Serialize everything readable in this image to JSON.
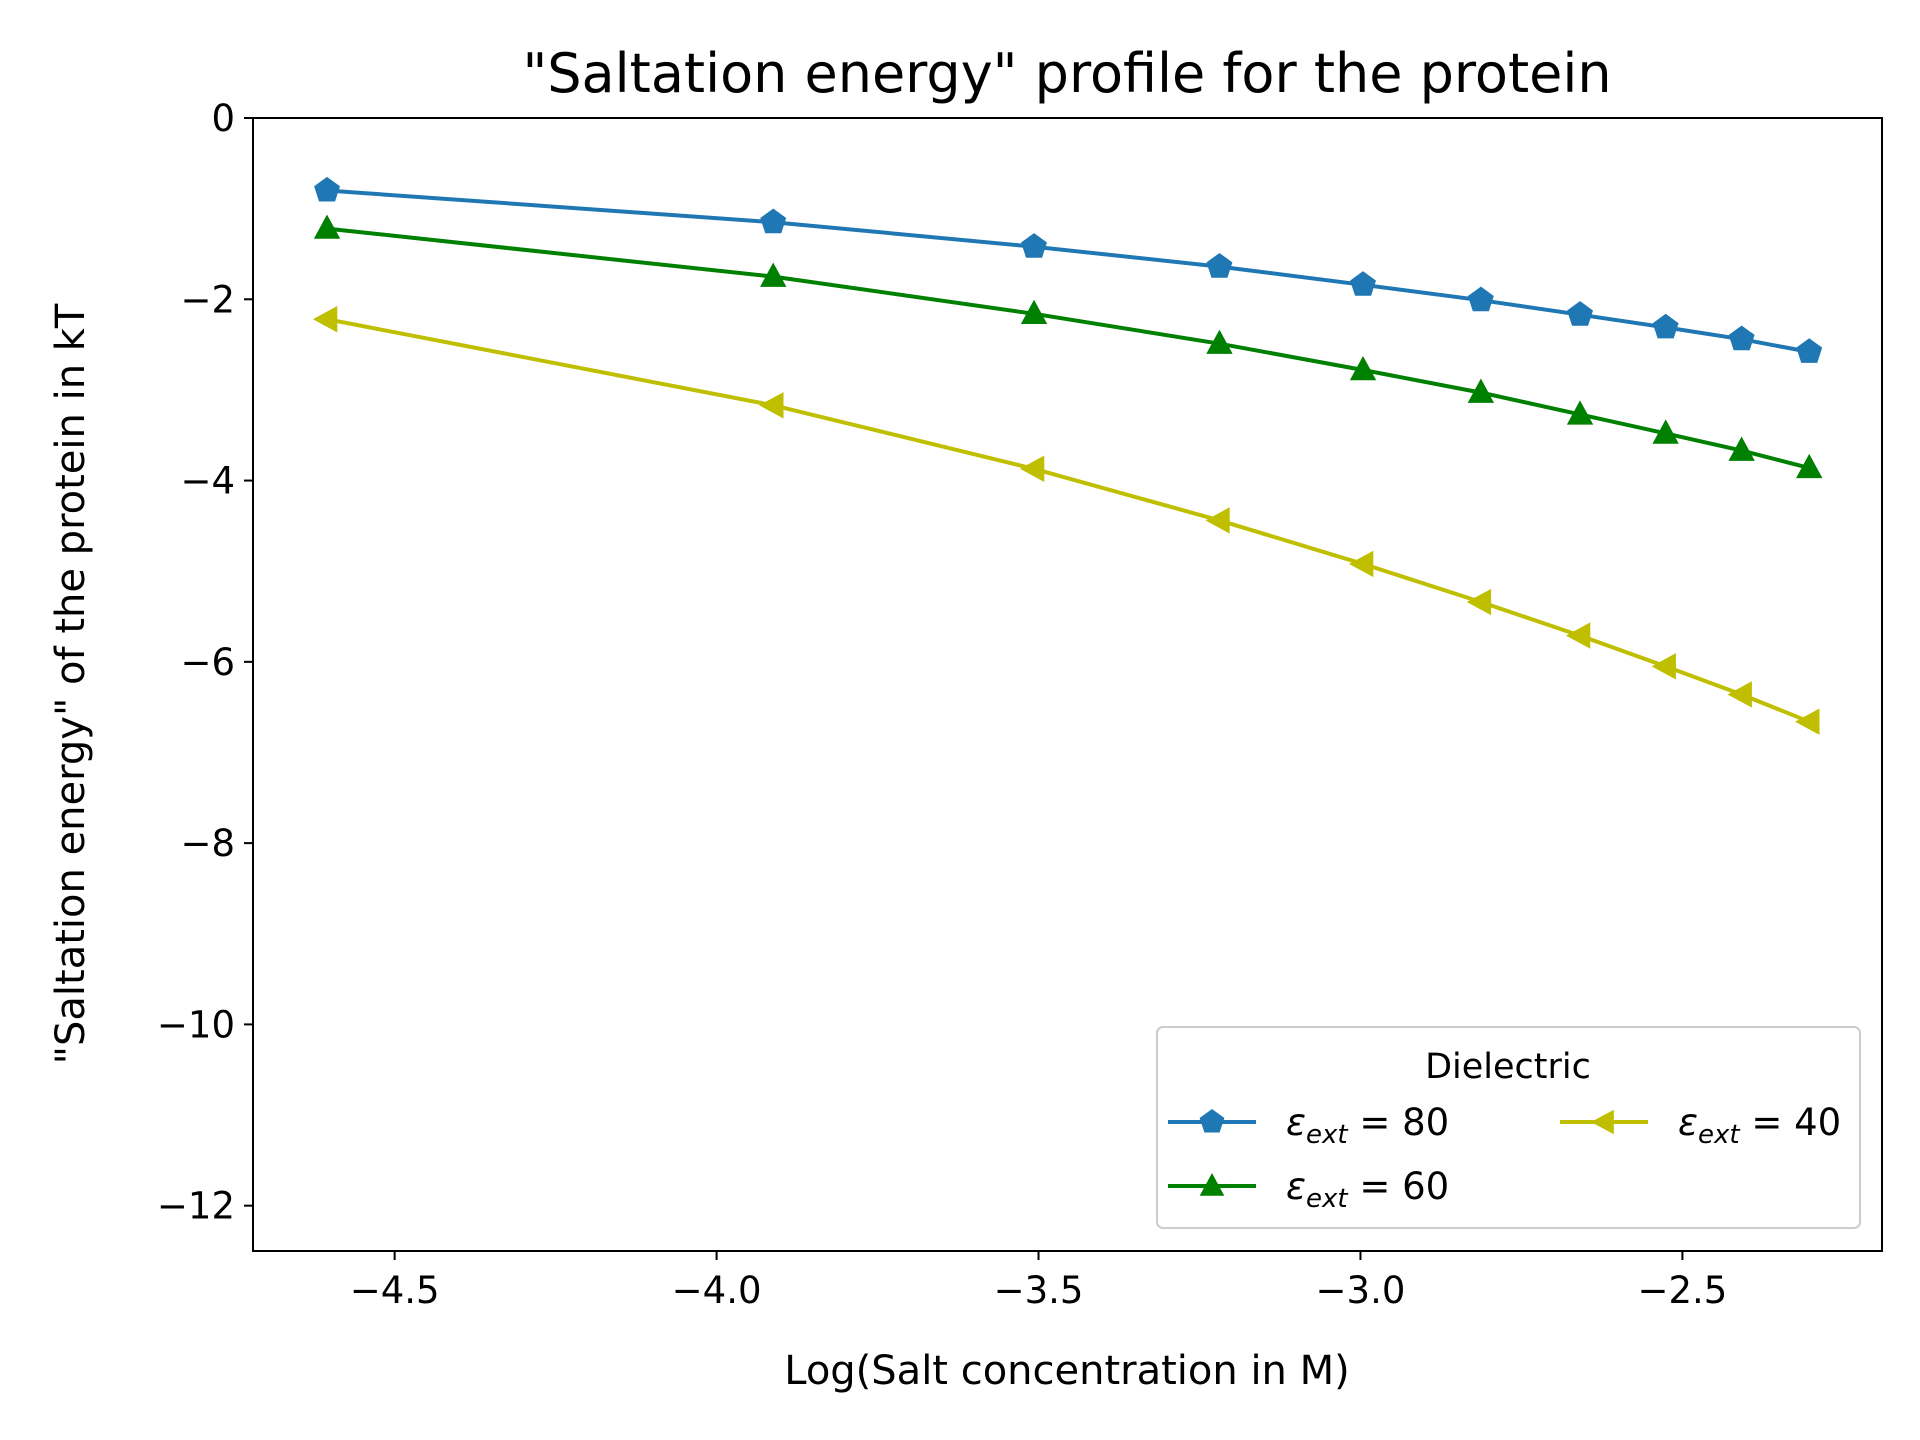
{
  "chart_data": {
    "type": "line",
    "title": "\"Saltation energy\" profile for the protein",
    "xlabel": "Log(Salt concentration in M)",
    "ylabel": "\"Saltation energy\" of the protein in kT",
    "xlim": [
      -4.72,
      -2.19
    ],
    "ylim": [
      -12.5,
      0
    ],
    "xticks": [
      -4.5,
      -4.0,
      -3.5,
      -3.0,
      -2.5
    ],
    "xtick_labels": [
      "−4.5",
      "−4.0",
      "−3.5",
      "−3.0",
      "−2.5"
    ],
    "yticks": [
      0,
      -2,
      -4,
      -6,
      -8,
      -10,
      -12
    ],
    "ytick_labels": [
      "0",
      "−2",
      "−4",
      "−6",
      "−8",
      "−10",
      "−12"
    ],
    "grid": false,
    "x": [
      -4.605,
      -3.912,
      -3.507,
      -3.219,
      -2.996,
      -2.813,
      -2.659,
      -2.526,
      -2.408,
      -2.303
    ],
    "series": [
      {
        "name": "εext = 80",
        "label_main": "ε",
        "label_sub": "ext",
        "label_value": " = 80",
        "color": "#1f77b4",
        "marker": "pentagon",
        "values": [
          -0.8,
          -1.15,
          -1.42,
          -1.64,
          -1.84,
          -2.01,
          -2.17,
          -2.31,
          -2.44,
          -2.58
        ]
      },
      {
        "name": "εext = 60",
        "label_main": "ε",
        "label_sub": "ext",
        "label_value": " = 60",
        "color": "#008000",
        "marker": "triangle-up",
        "values": [
          -1.22,
          -1.75,
          -2.16,
          -2.49,
          -2.78,
          -3.03,
          -3.27,
          -3.48,
          -3.67,
          -3.86
        ]
      },
      {
        "name": "εext = 40",
        "label_main": "ε",
        "label_sub": "ext",
        "label_value": " = 40",
        "color": "#bfbf00",
        "marker": "triangle-left",
        "values": [
          -2.22,
          -3.17,
          -3.87,
          -4.44,
          -4.92,
          -5.34,
          -5.71,
          -6.05,
          -6.36,
          -6.66
        ]
      }
    ],
    "legend": {
      "title": "Dielectric",
      "placement": "lower-right",
      "columns": 2
    }
  }
}
